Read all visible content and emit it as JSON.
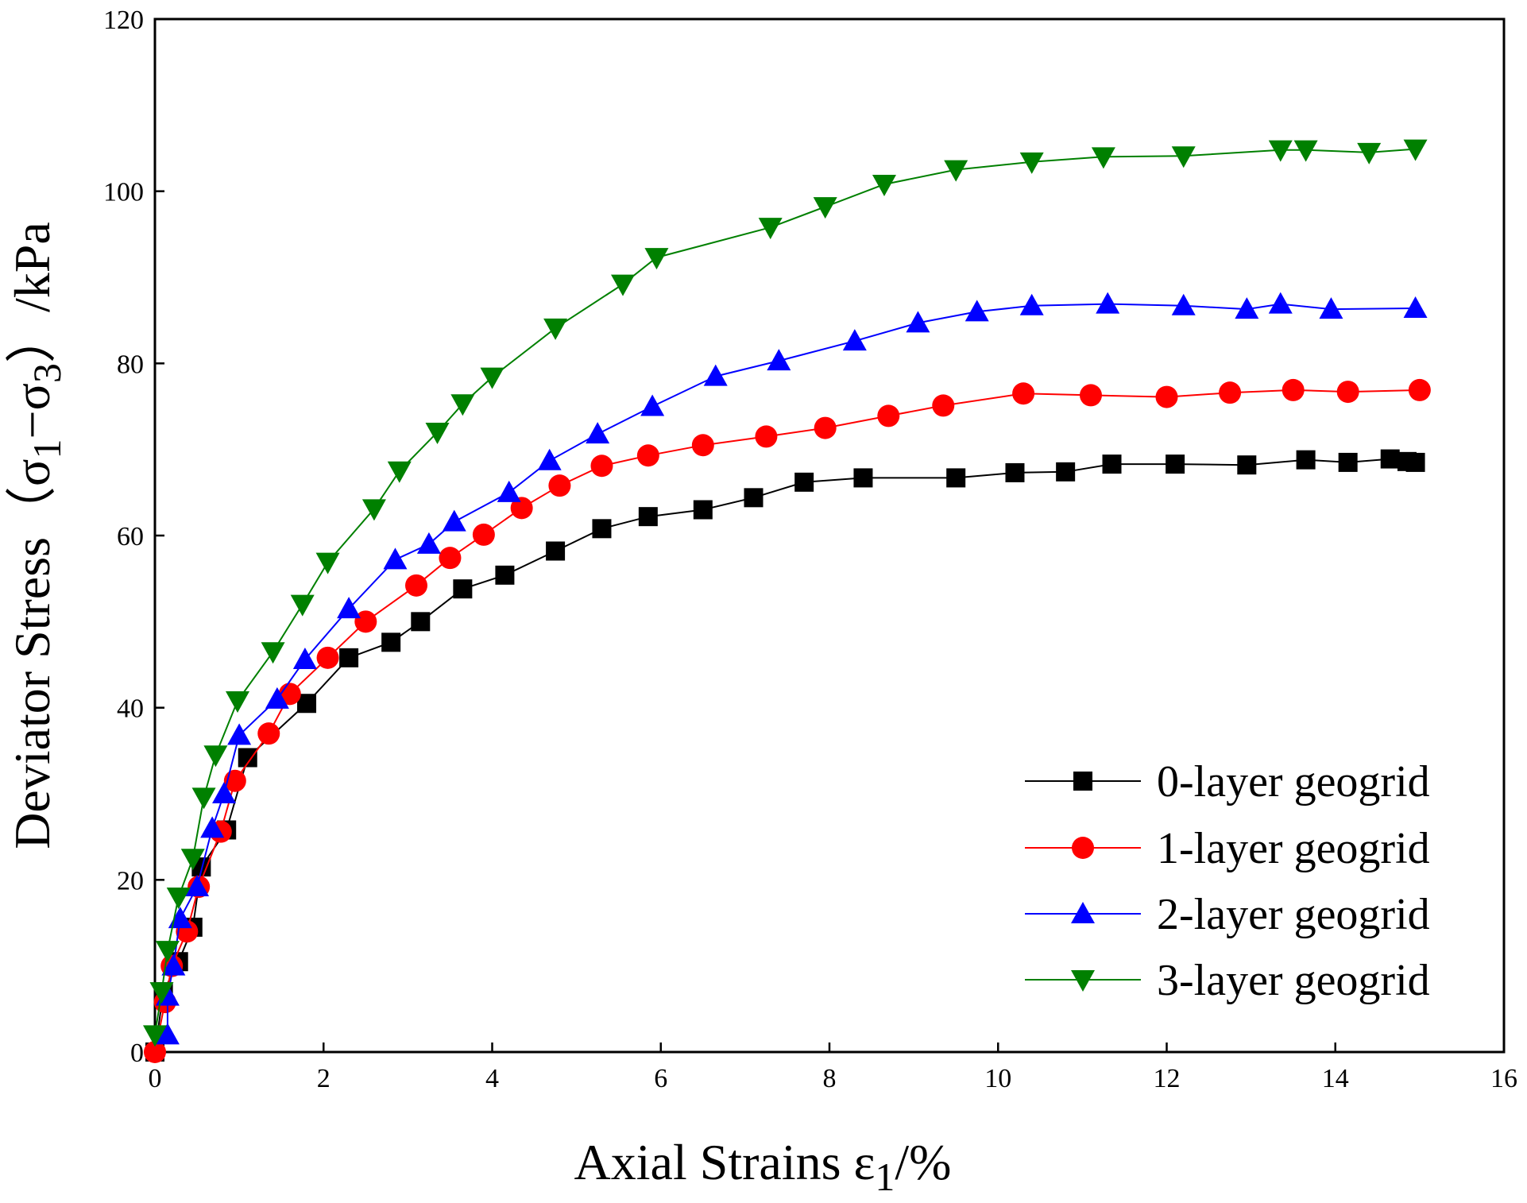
{
  "chart_data": {
    "type": "line",
    "title": "",
    "xlabel": {
      "prefix": "Axial Strains  ε",
      "sub": "1",
      "suffix": "/%"
    },
    "ylabel": {
      "prefix": "Deviator Stress（σ",
      "sub1": "1",
      "mid": "−σ",
      "sub2": "3",
      "suffix": "）/kPa"
    },
    "xlim": [
      0,
      16
    ],
    "ylim": [
      0,
      120
    ],
    "xticks": [
      "0",
      "2",
      "4",
      "6",
      "8",
      "10",
      "12",
      "14",
      "16"
    ],
    "yticks": [
      "0",
      "20",
      "40",
      "60",
      "80",
      "100",
      "120"
    ],
    "legend_position": "bottom-right",
    "series": [
      {
        "name": "0-layer geogrid",
        "color": "#000000",
        "marker": "square",
        "x": [
          0,
          0.1,
          0.28,
          0.45,
          0.55,
          0.85,
          1.1,
          1.8,
          2.3,
          2.8,
          3.15,
          3.65,
          4.15,
          4.75,
          5.3,
          5.85,
          6.5,
          7.1,
          7.7,
          8.4,
          9.5,
          10.2,
          10.8,
          11.35,
          12.1,
          12.95,
          13.65,
          14.15,
          14.65,
          14.85,
          14.95
        ],
        "y": [
          0,
          7.0,
          10.5,
          14.5,
          21.5,
          25.8,
          34.2,
          40.5,
          45.8,
          47.6,
          50.0,
          53.8,
          55.4,
          58.2,
          60.8,
          62.2,
          63.0,
          64.4,
          66.2,
          66.7,
          66.7,
          67.3,
          67.4,
          68.3,
          68.3,
          68.2,
          68.8,
          68.5,
          68.9,
          68.6,
          68.5
        ]
      },
      {
        "name": "1-layer geogrid",
        "color": "#ff0000",
        "marker": "circle",
        "x": [
          0,
          0.12,
          0.2,
          0.38,
          0.52,
          0.78,
          0.95,
          1.35,
          1.6,
          2.05,
          2.5,
          3.1,
          3.5,
          3.9,
          4.35,
          4.8,
          5.3,
          5.85,
          6.5,
          7.25,
          7.95,
          8.7,
          9.35,
          10.3,
          11.1,
          12.0,
          12.75,
          13.5,
          14.15,
          15.0
        ],
        "y": [
          0,
          5.8,
          10.0,
          14.0,
          19.2,
          25.6,
          31.5,
          37.0,
          41.6,
          45.8,
          50.0,
          54.2,
          57.4,
          60.1,
          63.2,
          65.8,
          68.1,
          69.3,
          70.5,
          71.5,
          72.5,
          73.9,
          75.1,
          76.5,
          76.3,
          76.1,
          76.6,
          76.9,
          76.7,
          76.9
        ]
      },
      {
        "name": "2-layer geogrid",
        "color": "#0000ff",
        "marker": "triangle-up",
        "x": [
          0.15,
          0.15,
          0.22,
          0.3,
          0.5,
          0.68,
          0.82,
          1.0,
          1.45,
          1.78,
          2.3,
          2.85,
          3.25,
          3.55,
          4.2,
          4.68,
          5.25,
          5.9,
          6.65,
          7.4,
          8.3,
          9.05,
          9.75,
          10.4,
          11.3,
          12.2,
          12.95,
          13.35,
          13.95,
          14.95
        ],
        "y": [
          2.0,
          6.5,
          10.0,
          15.5,
          19.2,
          26.0,
          30.0,
          36.8,
          41.0,
          45.6,
          51.5,
          57.2,
          59.0,
          61.6,
          65.0,
          68.7,
          71.8,
          75.0,
          78.5,
          80.3,
          82.6,
          84.7,
          86.0,
          86.7,
          86.9,
          86.7,
          86.3,
          86.9,
          86.3,
          86.4
        ]
      },
      {
        "name": "3-layer geogrid",
        "color": "#008000",
        "marker": "triangle-down",
        "x": [
          0,
          0.08,
          0.15,
          0.28,
          0.45,
          0.58,
          0.72,
          0.98,
          1.4,
          1.75,
          2.05,
          2.6,
          2.9,
          3.35,
          3.65,
          4.0,
          4.75,
          5.55,
          5.95,
          7.3,
          7.95,
          8.65,
          9.5,
          10.4,
          11.25,
          12.2,
          13.35,
          13.65,
          14.4,
          14.95
        ],
        "y": [
          2.0,
          7.0,
          11.8,
          18.0,
          22.5,
          29.6,
          34.5,
          40.8,
          46.5,
          52.0,
          56.9,
          63.1,
          67.5,
          72.0,
          75.3,
          78.4,
          84.1,
          89.2,
          92.3,
          95.8,
          98.2,
          100.8,
          102.5,
          103.4,
          104.0,
          104.1,
          104.8,
          104.8,
          104.5,
          104.9
        ]
      }
    ]
  }
}
